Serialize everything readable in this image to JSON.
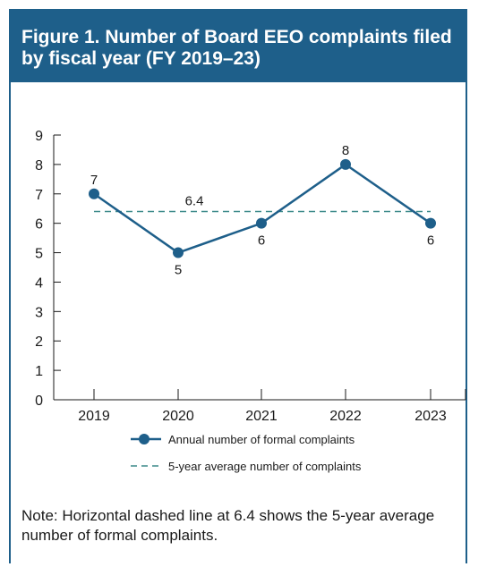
{
  "figure": {
    "title": "Figure 1. Number of Board EEO complaints filed by fiscal year (FY 2019–23)",
    "note": "Note: Horizontal dashed line at 6.4 shows the 5-year average number of formal complaints."
  },
  "chart_data": {
    "type": "line",
    "categories": [
      "2019",
      "2020",
      "2021",
      "2022",
      "2023"
    ],
    "series": [
      {
        "name": "Annual number of formal complaints",
        "values": [
          7,
          5,
          6,
          8,
          6
        ]
      }
    ],
    "reference_line": {
      "name": "5-year average number of complaints",
      "value": 6.4,
      "label": "6.4",
      "style": "dashed"
    },
    "ylim": [
      0,
      9
    ],
    "yticks": [
      "0",
      "1",
      "2",
      "3",
      "4",
      "5",
      "6",
      "7",
      "8",
      "9"
    ],
    "data_labels": [
      "7",
      "5",
      "6",
      "8",
      "6"
    ],
    "colors": {
      "series": "#1e5f8a",
      "reference": "#3d8a8a",
      "header": "#1e5f8a"
    },
    "grid": false,
    "legend_position": "bottom"
  }
}
